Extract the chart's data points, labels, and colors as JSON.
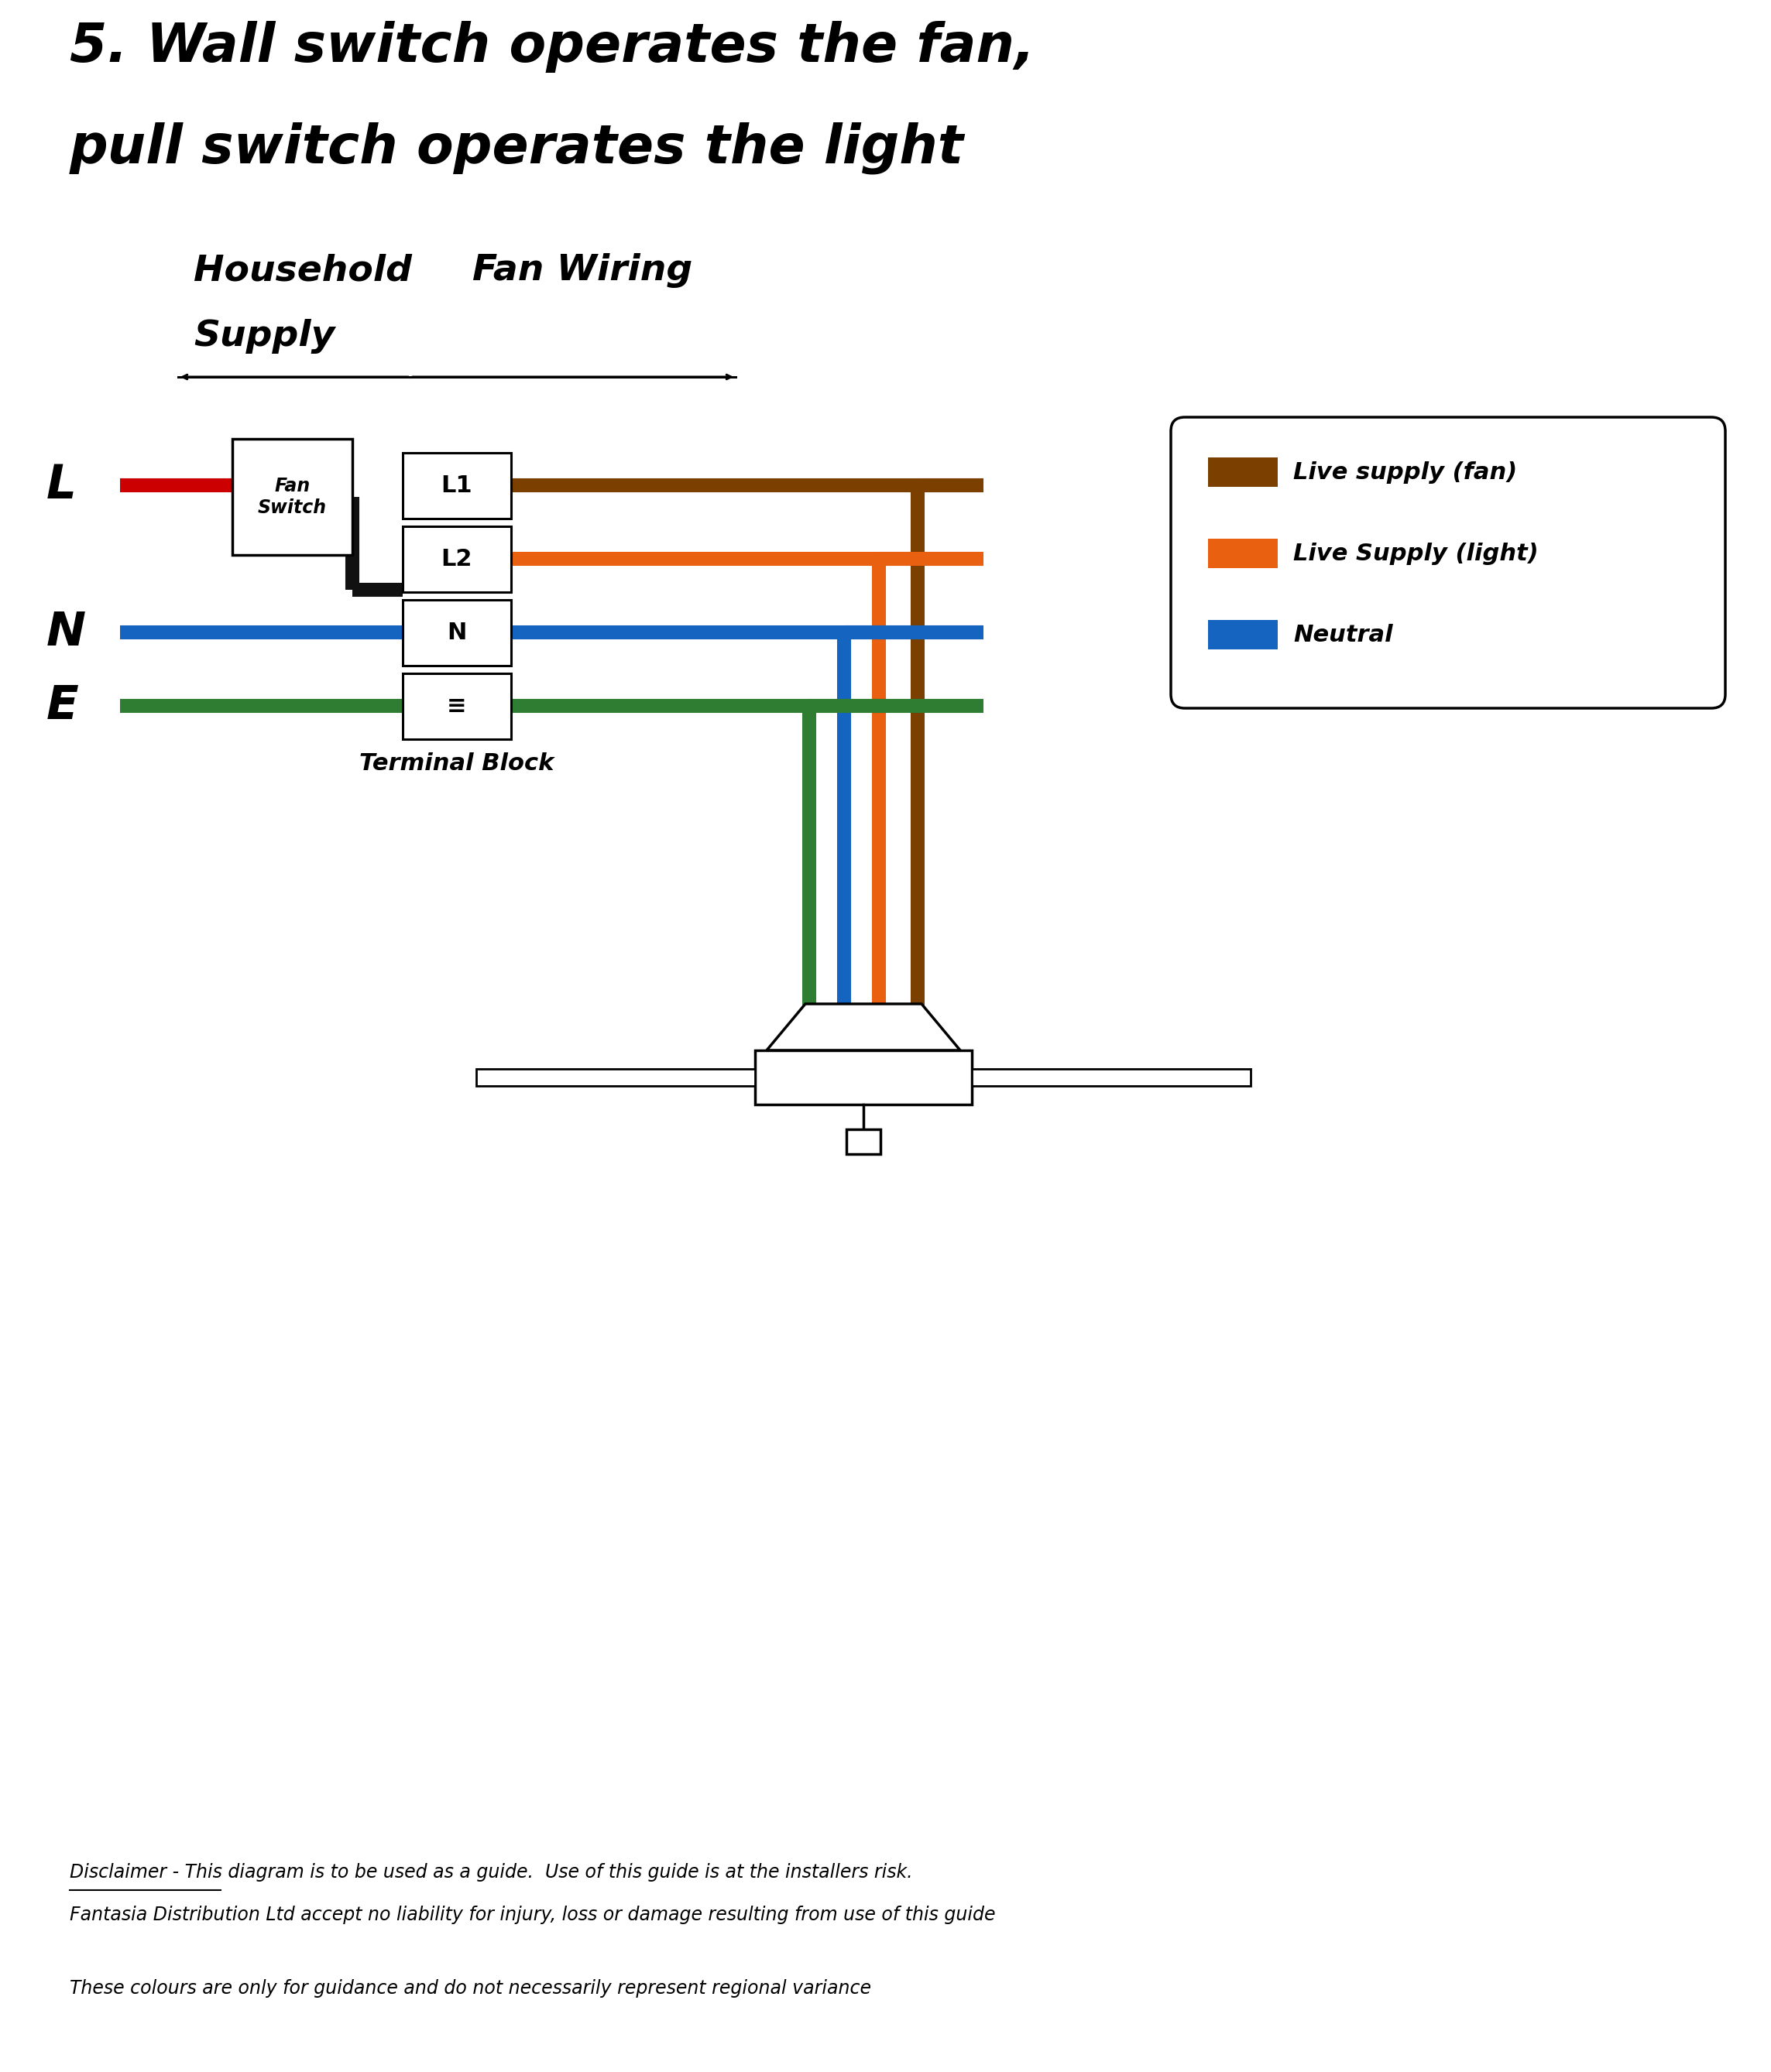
{
  "title_line1": "5. Wall switch operates the fan,",
  "title_line2": "pull switch operates the light",
  "title_fontsize": 50,
  "subtitle_household_1": "Household",
  "subtitle_household_2": "Supply",
  "subtitle_fan": "Fan Wiring",
  "label_L": "L",
  "label_N": "N",
  "label_E": "E",
  "terminal_labels": [
    "L1",
    "L2",
    "N",
    "≡"
  ],
  "terminal_block_label": "Terminal Block",
  "fan_switch_label": "Fan\nSwitch",
  "legend_items": [
    {
      "color": "#7B3F00",
      "label": "Live supply (fan)"
    },
    {
      "color": "#E86010",
      "label": "Live Supply (light)"
    },
    {
      "color": "#1565C0",
      "label": "Neutral"
    }
  ],
  "disclaimer_word": "Disclaimer",
  "disclaimer_line1": "Disclaimer - This diagram is to be used as a guide.  Use of this guide is at the installers risk.",
  "disclaimer_line2": "Fantasia Distribution Ltd accept no liability for injury, loss or damage resulting from use of this guide",
  "disclaimer_line3": "These colours are only for guidance and do not necessarily represent regional variance",
  "wire_brown": "#7B3F00",
  "wire_orange": "#E86010",
  "wire_blue": "#1565C0",
  "wire_green": "#2E7D32",
  "wire_black": "#111111",
  "wire_red": "#CC0000",
  "bg_color": "#FFFFFF"
}
